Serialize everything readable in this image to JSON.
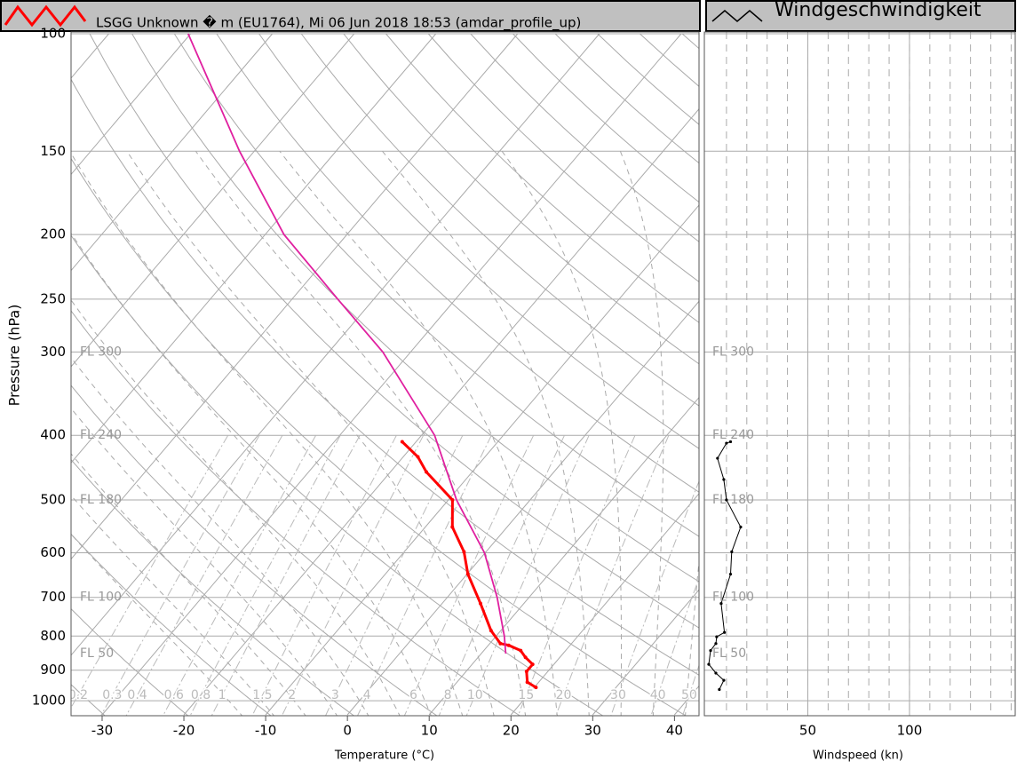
{
  "header": {
    "title": "LSGG Unknown � m (EU1764), Mi 06 Jun 2018 18:53 (amdar_profile_up)",
    "wind_title": "Windgeschwindigkeit"
  },
  "chart_data": [
    {
      "type": "skewt",
      "xlabel": "Temperature (°C)",
      "ylabel": "Pressure (hPa)",
      "xlim": [
        -33.8,
        43
      ],
      "ylim": [
        1050,
        100
      ],
      "log_y": true,
      "xticks": [
        -30,
        -20,
        -10,
        0,
        10,
        20,
        30,
        40
      ],
      "yticks": [
        100,
        150,
        200,
        250,
        300,
        400,
        500,
        600,
        700,
        800,
        900,
        1000
      ],
      "flight_levels": {
        "pressures": [
          300,
          400,
          500,
          700,
          850
        ],
        "labels": [
          "FL 300",
          "FL 240",
          "FL 180",
          "FL 100",
          "FL 50"
        ]
      },
      "mixing_ratios": [
        0.2,
        0.3,
        0.4,
        0.6,
        0.8,
        1,
        1.5,
        2,
        3,
        4,
        6,
        8,
        10,
        15,
        20,
        30,
        40,
        50
      ],
      "series": [
        {
          "color": "#ff0000",
          "pressure": [
            955,
            938,
            904,
            882,
            861,
            841,
            826,
            821,
            785,
            715,
            646,
            598,
            549,
            500,
            454,
            431,
            409
          ],
          "values": [
            20.2,
            18.6,
            17.4,
            17.4,
            15.8,
            14.5,
            12.5,
            11.3,
            8.8,
            4.7,
            0.1,
            -2.7,
            -6.7,
            -9.5,
            -15.6,
            -18.2,
            -21.7
          ]
        },
        {
          "color": "#e020a0",
          "pressure": [
            100,
            150,
            200,
            250,
            300,
            400,
            500,
            600,
            700,
            800,
            850
          ],
          "values": [
            -90.3,
            -71.8,
            -57.7,
            -44.4,
            -33.4,
            -18.4,
            -9.0,
            -0.1,
            6.1,
            11.0,
            13.0
          ]
        }
      ]
    },
    {
      "type": "wind",
      "xlabel": "Windspeed (kn)",
      "xlim": [
        0,
        152
      ],
      "xticks": [
        50,
        100
      ],
      "ylim": [
        1050,
        100
      ],
      "yticks": [
        100,
        150,
        200,
        250,
        300,
        400,
        500,
        600,
        700,
        800,
        900,
        1000
      ],
      "series": [
        {
          "color": "#000000",
          "pressure": [
            409,
            411,
            433,
            466,
            500,
            549,
            598,
            646,
            715,
            790,
            802,
            821,
            841,
            882,
            909,
            932,
            962
          ],
          "values": [
            12,
            10,
            5.6,
            8.7,
            10,
            17,
            12.6,
            12,
            7.4,
            9,
            5.2,
            4.8,
            2.2,
            1.3,
            4.8,
            8.7,
            6.5
          ]
        }
      ]
    }
  ]
}
